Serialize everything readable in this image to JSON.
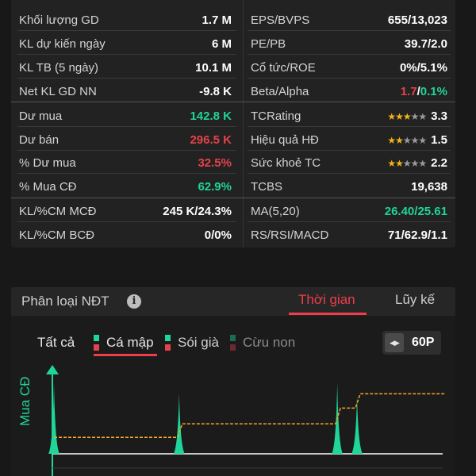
{
  "stats": {
    "left": [
      {
        "label": "Khối lượng GD",
        "value": "1.7 M",
        "color": "white"
      },
      {
        "label": "KL dự kiến ngày",
        "value": "6 M",
        "color": "white"
      },
      {
        "label": "KL TB (5 ngày)",
        "value": "10.1 M",
        "color": "white"
      },
      {
        "label": "Net KL GD NN",
        "value": "-9.8 K",
        "color": "white"
      },
      {
        "label": "Dư mua",
        "value": "142.8 K",
        "color": "green"
      },
      {
        "label": "Dư bán",
        "value": "296.5 K",
        "color": "red"
      },
      {
        "label": "% Dư mua",
        "value": "32.5%",
        "color": "red"
      },
      {
        "label": "% Mua CĐ",
        "value": "62.9%",
        "color": "green"
      },
      {
        "label": "KL/%CM MCĐ",
        "value": "245 K/24.3%",
        "color": "white"
      },
      {
        "label": "KL/%CM BCĐ",
        "value": "0/0%",
        "color": "white"
      }
    ],
    "right": [
      {
        "label": "EPS/BVPS",
        "value": "655/13,023"
      },
      {
        "label": "PE/PB",
        "value": "39.7/2.0"
      },
      {
        "label": "Cổ tức/ROE",
        "value": "0%/5.1%"
      },
      {
        "label": "Beta/Alpha",
        "value_a": "1.7",
        "value_sep": "/",
        "value_b": "0.1%"
      },
      {
        "label": "TCRating",
        "value": "3.3",
        "stars": 3
      },
      {
        "label": "Hiệu quả HĐ",
        "value": "1.5",
        "stars": 2
      },
      {
        "label": "Sức khoẻ TC",
        "value": "2.2",
        "stars": 2
      },
      {
        "label": "TCBS",
        "value": "19,638"
      },
      {
        "label": "MA(5,20)",
        "value_a": "26.40",
        "value_sep": "/",
        "value_b": "25.61"
      },
      {
        "label": "RS/RSI/MACD",
        "value": "71/62.9/1.1"
      }
    ]
  },
  "classification": {
    "title": "Phân loại NĐT",
    "info_icon": "info-icon",
    "tabs": [
      {
        "label": "Thời gian",
        "active": true
      },
      {
        "label": "Lũy kế",
        "active": false
      }
    ],
    "filters": [
      {
        "label": "Tất cả",
        "marker": false,
        "active": false
      },
      {
        "label": "Cá mập",
        "marker": true,
        "up_color": "#1fd59a",
        "down_color": "#e5424b",
        "active": true
      },
      {
        "label": "Sói già",
        "marker": true,
        "up_color": "#1fd59a",
        "down_color": "#e5424b",
        "active": false
      },
      {
        "label": "Cừu non",
        "marker": true,
        "up_color": "#1c6b52",
        "down_color": "#6b2a2e",
        "active": false
      }
    ],
    "period_icon": "expand-horizontal-icon",
    "period": "60P",
    "y_label": "Mua CĐ"
  },
  "colors": {
    "green": "#1fd59a",
    "red": "#e5424b",
    "orange": "#f5a623",
    "star": "#f2b21c"
  },
  "chart_data": {
    "type": "area",
    "series": [
      {
        "kind": "volume-spikes",
        "x": [
          0,
          19,
          43,
          46
        ],
        "values": [
          1,
          0.85,
          1,
          0.8
        ]
      },
      {
        "kind": "cumulative-step",
        "x": [
          0,
          19,
          43,
          46,
          59
        ],
        "values": [
          0.23,
          0.42,
          0.64,
          0.84,
          0.84
        ]
      }
    ],
    "xlim": [
      0,
      59
    ]
  }
}
